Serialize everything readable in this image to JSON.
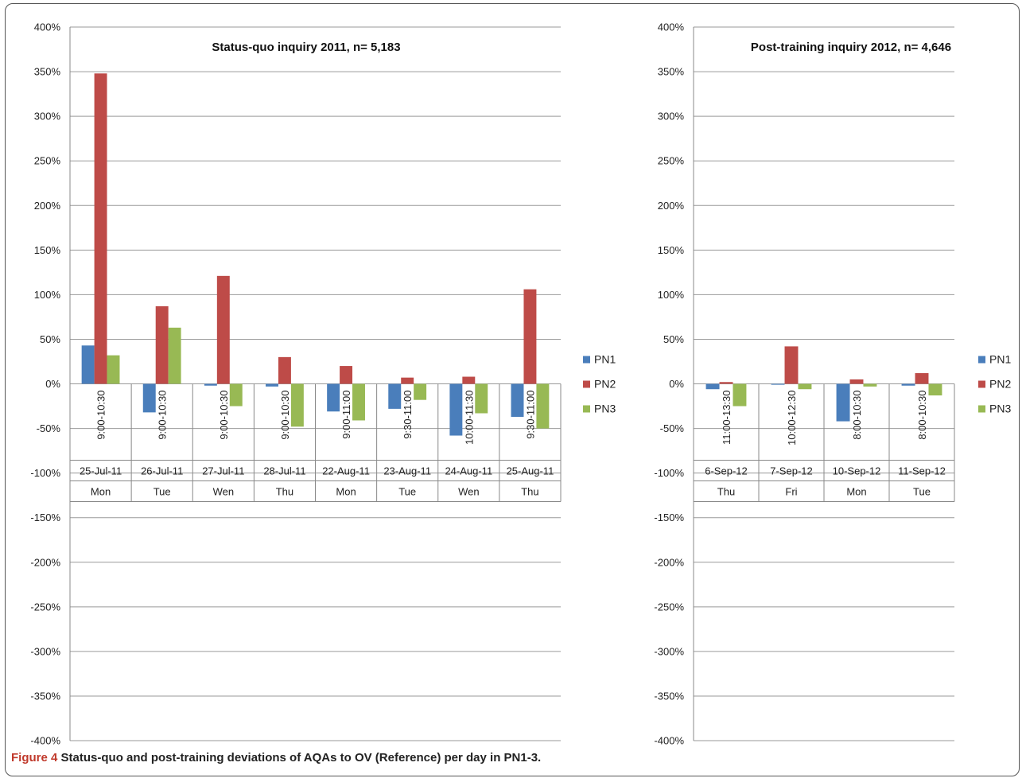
{
  "figure": {
    "caption_label": "Figure 4",
    "caption_text": "Status-quo and post-training deviations of AQAs to OV (Reference) per day in PN1-3."
  },
  "colors": {
    "PN1": "#4a7ebb",
    "PN2": "#be4b48",
    "PN3": "#98b954"
  },
  "chart_data": [
    {
      "type": "bar",
      "title": "Status-quo inquiry 2011, n= 5,183",
      "ylim": [
        -4.0,
        4.0
      ],
      "ytick_step": 0.5,
      "y_format": "percent",
      "grid": true,
      "legend_position": "right",
      "categories": [
        "25-Jul-11",
        "26-Jul-11",
        "27-Jul-11",
        "28-Jul-11",
        "22-Aug-11",
        "23-Aug-11",
        "24-Aug-11",
        "25-Aug-11"
      ],
      "times": [
        "9:00-10:30",
        "9:00-10:30",
        "9:00-10:30",
        "9:00-10:30",
        "9:00-11:00",
        "9:30-11:00",
        "10:00-11:30",
        "9:30-11:00"
      ],
      "weekdays": [
        "Mon",
        "Tue",
        "Wen",
        "Thu",
        "Mon",
        "Tue",
        "Wen",
        "Thu"
      ],
      "series": [
        {
          "name": "PN1",
          "values": [
            0.43,
            -0.32,
            -0.02,
            -0.03,
            -0.31,
            -0.28,
            -0.58,
            -0.37
          ]
        },
        {
          "name": "PN2",
          "values": [
            3.48,
            0.87,
            1.21,
            0.3,
            0.2,
            0.07,
            0.08,
            1.06
          ]
        },
        {
          "name": "PN3",
          "values": [
            0.32,
            0.63,
            -0.25,
            -0.48,
            -0.41,
            -0.18,
            -0.33,
            -0.5
          ]
        }
      ]
    },
    {
      "type": "bar",
      "title": "Post-training inquiry 2012, n= 4,646",
      "ylim": [
        -4.0,
        4.0
      ],
      "ytick_step": 0.5,
      "y_format": "percent",
      "grid": true,
      "legend_position": "right",
      "categories": [
        "6-Sep-12",
        "7-Sep-12",
        "10-Sep-12",
        "11-Sep-12"
      ],
      "times": [
        "11:00-13:30",
        "10:00-12:30",
        "8:00-10:30",
        "8:00-10:30"
      ],
      "weekdays": [
        "Thu",
        "Fri",
        "Mon",
        "Tue"
      ],
      "series": [
        {
          "name": "PN1",
          "values": [
            -0.06,
            -0.01,
            -0.42,
            -0.02
          ]
        },
        {
          "name": "PN2",
          "values": [
            0.02,
            0.42,
            0.05,
            0.12
          ]
        },
        {
          "name": "PN3",
          "values": [
            -0.25,
            -0.06,
            -0.03,
            -0.13
          ]
        }
      ]
    }
  ]
}
